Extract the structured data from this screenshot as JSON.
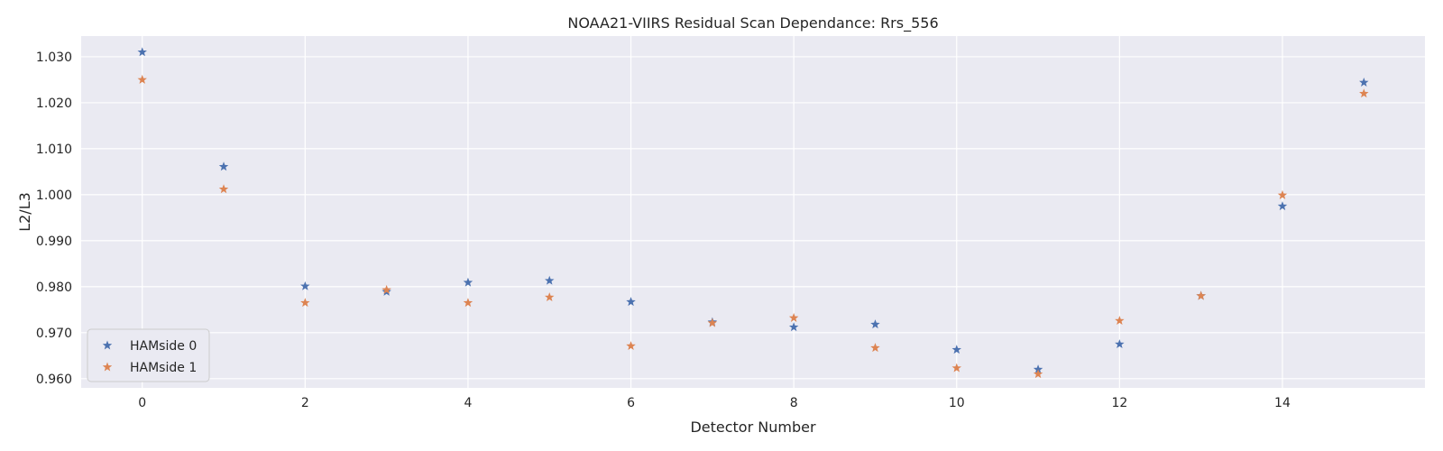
{
  "chart_data": {
    "type": "scatter",
    "title": "NOAA21-VIIRS Residual Scan Dependance: Rrs_556",
    "xlabel": "Detector Number",
    "ylabel": "L2/L3",
    "xlim": [
      -0.75,
      15.75
    ],
    "ylim": [
      0.958,
      1.0345
    ],
    "xticks": [
      0,
      2,
      4,
      6,
      8,
      10,
      12,
      14
    ],
    "yticks": [
      0.96,
      0.97,
      0.98,
      0.99,
      1.0,
      1.01,
      1.02,
      1.03
    ],
    "ytick_labels": [
      "0.960",
      "0.970",
      "0.980",
      "0.990",
      "1.000",
      "1.010",
      "1.020",
      "1.030"
    ],
    "grid": true,
    "legend_position": "lower-left",
    "marker": "star",
    "x": [
      0,
      1,
      2,
      3,
      4,
      5,
      6,
      7,
      8,
      9,
      10,
      11,
      12,
      13,
      14,
      15
    ],
    "series": [
      {
        "name": "HAMside 0",
        "color": "#4c72b0",
        "values": [
          1.031,
          1.0061,
          0.9801,
          0.9789,
          0.9809,
          0.9813,
          0.9767,
          0.9723,
          0.9712,
          0.9718,
          0.9663,
          0.962,
          0.9675,
          0.978,
          0.9975,
          1.0244
        ]
      },
      {
        "name": "HAMside 1",
        "color": "#dd8452",
        "values": [
          1.025,
          1.0012,
          0.9765,
          0.9793,
          0.9765,
          0.9777,
          0.9671,
          0.9721,
          0.9732,
          0.9667,
          0.9623,
          0.961,
          0.9726,
          0.978,
          0.9999,
          1.022
        ]
      }
    ]
  }
}
